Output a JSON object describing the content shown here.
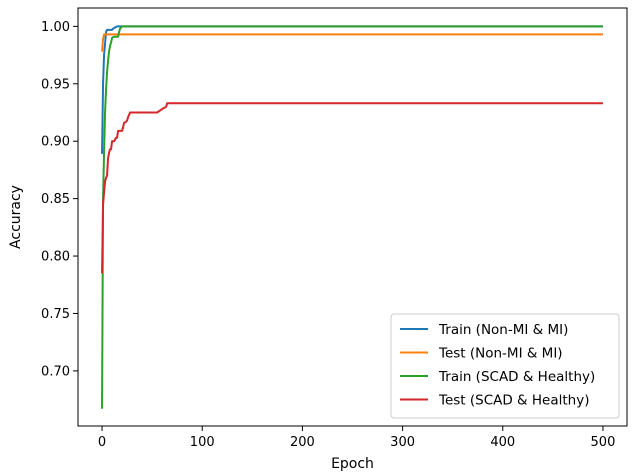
{
  "chart_data": {
    "type": "line",
    "title": "",
    "xlabel": "Epoch",
    "ylabel": "Accuracy",
    "xlim": [
      -24,
      524
    ],
    "ylim": [
      0.652,
      1.016
    ],
    "x_ticks": [
      0,
      100,
      200,
      300,
      400,
      500
    ],
    "y_ticks": [
      0.7,
      0.75,
      0.8,
      0.85,
      0.9,
      0.95,
      1.0
    ],
    "x_tick_labels": [
      "0",
      "100",
      "200",
      "300",
      "400",
      "500"
    ],
    "y_tick_labels": [
      "0.70",
      "0.75",
      "0.80",
      "0.85",
      "0.90",
      "0.95",
      "1.00"
    ],
    "grid": false,
    "legend_position": "lower-right",
    "series": [
      {
        "name": "Train (Non-MI & MI)",
        "color": "#1f77b4",
        "x": [
          0,
          1,
          2,
          3,
          4,
          5,
          10,
          11,
          15,
          20,
          100,
          500
        ],
        "y": [
          0.889,
          0.95,
          0.975,
          0.985,
          0.995,
          0.997,
          0.997,
          0.998,
          1.0,
          1.0,
          1.0,
          1.0
        ]
      },
      {
        "name": "Test (Non-MI & MI)",
        "color": "#ff7f0e",
        "x": [
          0,
          1,
          2,
          3,
          5,
          10,
          500
        ],
        "y": [
          0.978,
          0.989,
          0.993,
          0.993,
          0.993,
          0.993,
          0.993
        ]
      },
      {
        "name": "Train (SCAD & Healthy)",
        "color": "#2ca02c",
        "x": [
          0,
          1,
          2,
          3,
          4,
          5,
          6,
          7,
          8,
          9,
          10,
          12,
          14,
          16,
          17,
          18,
          20,
          25,
          500
        ],
        "y": [
          0.667,
          0.85,
          0.89,
          0.925,
          0.945,
          0.96,
          0.97,
          0.978,
          0.983,
          0.986,
          0.99,
          0.991,
          0.991,
          0.991,
          0.995,
          0.998,
          1.0,
          1.0,
          1.0
        ]
      },
      {
        "name": "Test (SCAD & Healthy)",
        "color": "#d62728",
        "x": [
          0,
          1,
          2,
          3,
          4,
          5,
          6,
          7,
          8,
          9,
          10,
          12,
          14,
          15,
          16,
          20,
          21,
          22,
          24,
          25,
          26,
          28,
          30,
          35,
          40,
          45,
          50,
          55,
          60,
          62,
          64,
          65,
          70,
          100,
          200,
          300,
          400,
          500
        ],
        "y": [
          0.785,
          0.845,
          0.855,
          0.865,
          0.868,
          0.87,
          0.885,
          0.89,
          0.893,
          0.893,
          0.9,
          0.9,
          0.903,
          0.903,
          0.909,
          0.909,
          0.912,
          0.916,
          0.917,
          0.918,
          0.921,
          0.925,
          0.925,
          0.925,
          0.925,
          0.925,
          0.925,
          0.925,
          0.928,
          0.929,
          0.93,
          0.933,
          0.933,
          0.933,
          0.933,
          0.933,
          0.933,
          0.933
        ]
      }
    ]
  }
}
